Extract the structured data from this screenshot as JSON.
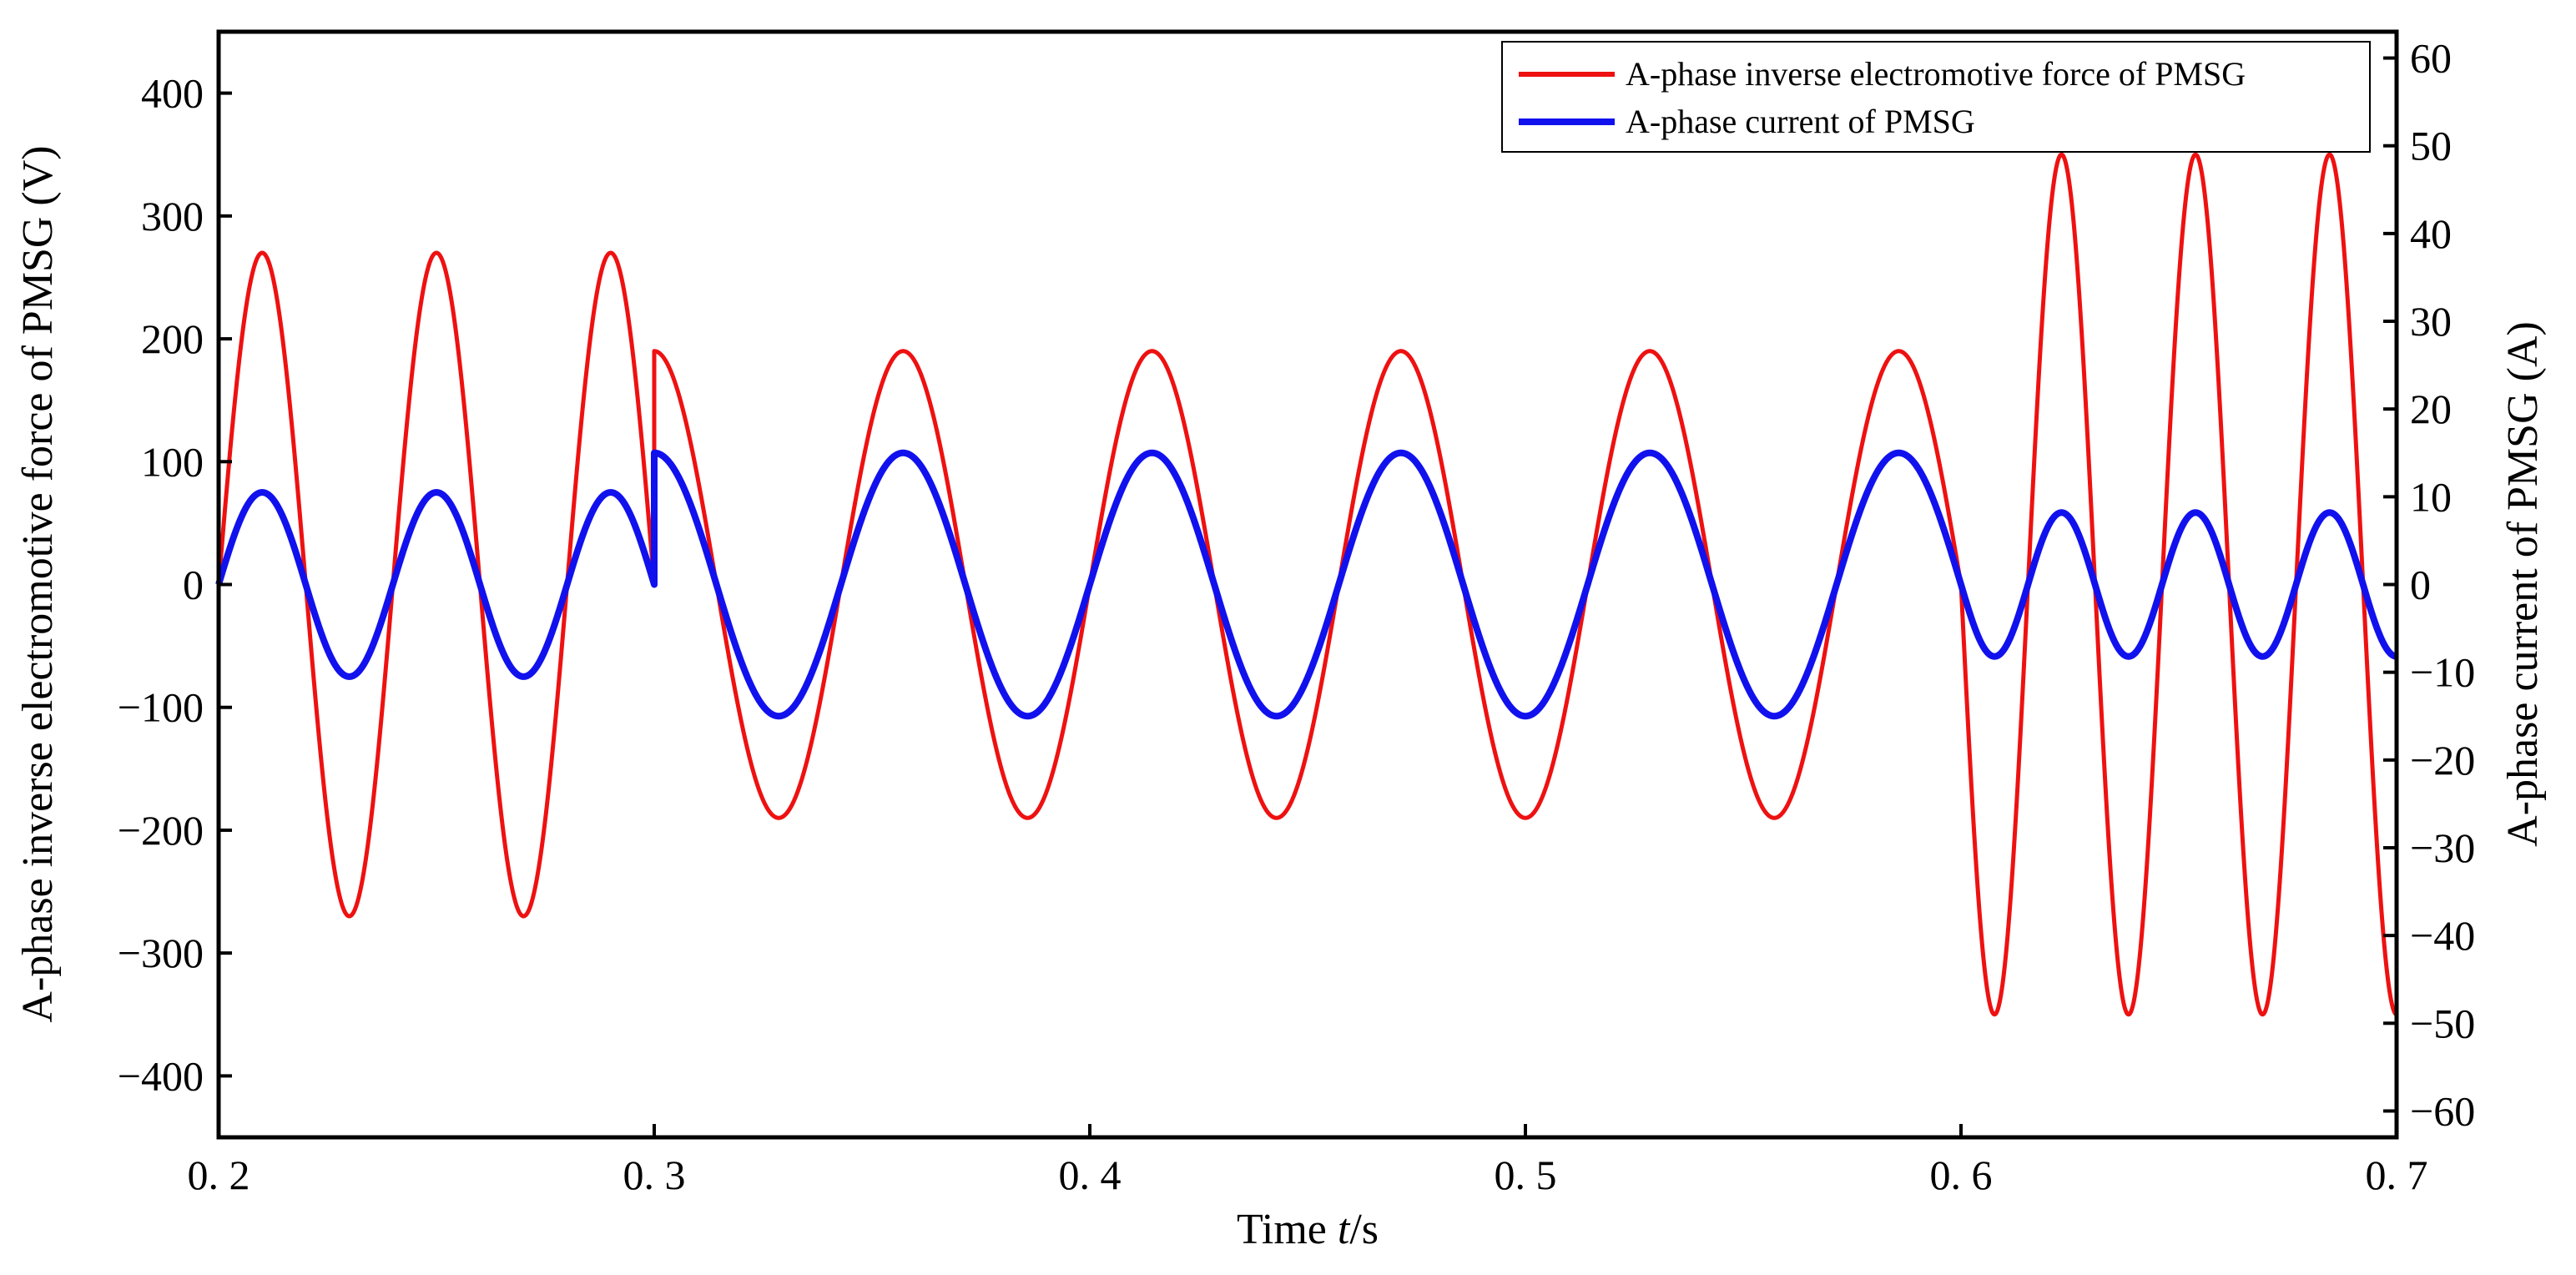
{
  "chart_data": {
    "type": "line",
    "xlabel_prefix": "Time ",
    "xlabel_var": "t",
    "xlabel_suffix": "/s",
    "ylabel_left": "A-phase inverse electromotive force of PMSG (V)",
    "ylabel_right": "A-phase current of PMSG (A)",
    "xlim": [
      0.2,
      0.7
    ],
    "ylim_left": [
      -450,
      450
    ],
    "ylim_right": [
      -63,
      63
    ],
    "x_ticks": [
      0.2,
      0.3,
      0.4,
      0.5,
      0.6,
      0.7
    ],
    "x_tick_labels": [
      "0. 2",
      "0. 3",
      "0. 4",
      "0. 5",
      "0. 6",
      "0. 7"
    ],
    "y_left_ticks": [
      -400,
      -300,
      -200,
      -100,
      0,
      100,
      200,
      300,
      400
    ],
    "y_left_tick_labels": [
      "−400",
      "−300",
      "−200",
      "−100",
      "0",
      "100",
      "200",
      "300",
      "400"
    ],
    "y_right_ticks": [
      -60,
      -50,
      -40,
      -30,
      -20,
      -10,
      0,
      10,
      20,
      30,
      40,
      50,
      60
    ],
    "y_right_tick_labels": [
      "−60",
      "−50",
      "−40",
      "−30",
      "−20",
      "−10",
      "0",
      "10",
      "20",
      "30",
      "40",
      "50",
      "60"
    ],
    "legend_position": "top-right",
    "series": [
      {
        "name": "A-phase inverse electromotive force of PMSG",
        "axis": "left",
        "color": "#ee1111",
        "segments": [
          {
            "t_start": 0.2,
            "t_end": 0.3,
            "amplitude": 270,
            "frequency_hz": 25,
            "phase_rad": 0
          },
          {
            "t_start": 0.3,
            "t_end": 0.6,
            "amplitude": 190,
            "frequency_hz": 17.5,
            "phase_rad": 1.5708
          },
          {
            "t_start": 0.6,
            "t_end": 0.7,
            "amplitude": 350,
            "frequency_hz": 32.5,
            "phase_rad": 3.14159
          }
        ]
      },
      {
        "name": "A-phase current of PMSG",
        "axis": "right",
        "color": "#1111ee",
        "segments": [
          {
            "t_start": 0.2,
            "t_end": 0.3,
            "amplitude": 10.5,
            "frequency_hz": 25,
            "phase_rad": 0
          },
          {
            "t_start": 0.3,
            "t_end": 0.6,
            "amplitude": 15,
            "frequency_hz": 17.5,
            "phase_rad": 1.5708
          },
          {
            "t_start": 0.6,
            "t_end": 0.7,
            "amplitude": 8.2,
            "frequency_hz": 32.5,
            "phase_rad": 3.14159
          }
        ]
      }
    ]
  }
}
